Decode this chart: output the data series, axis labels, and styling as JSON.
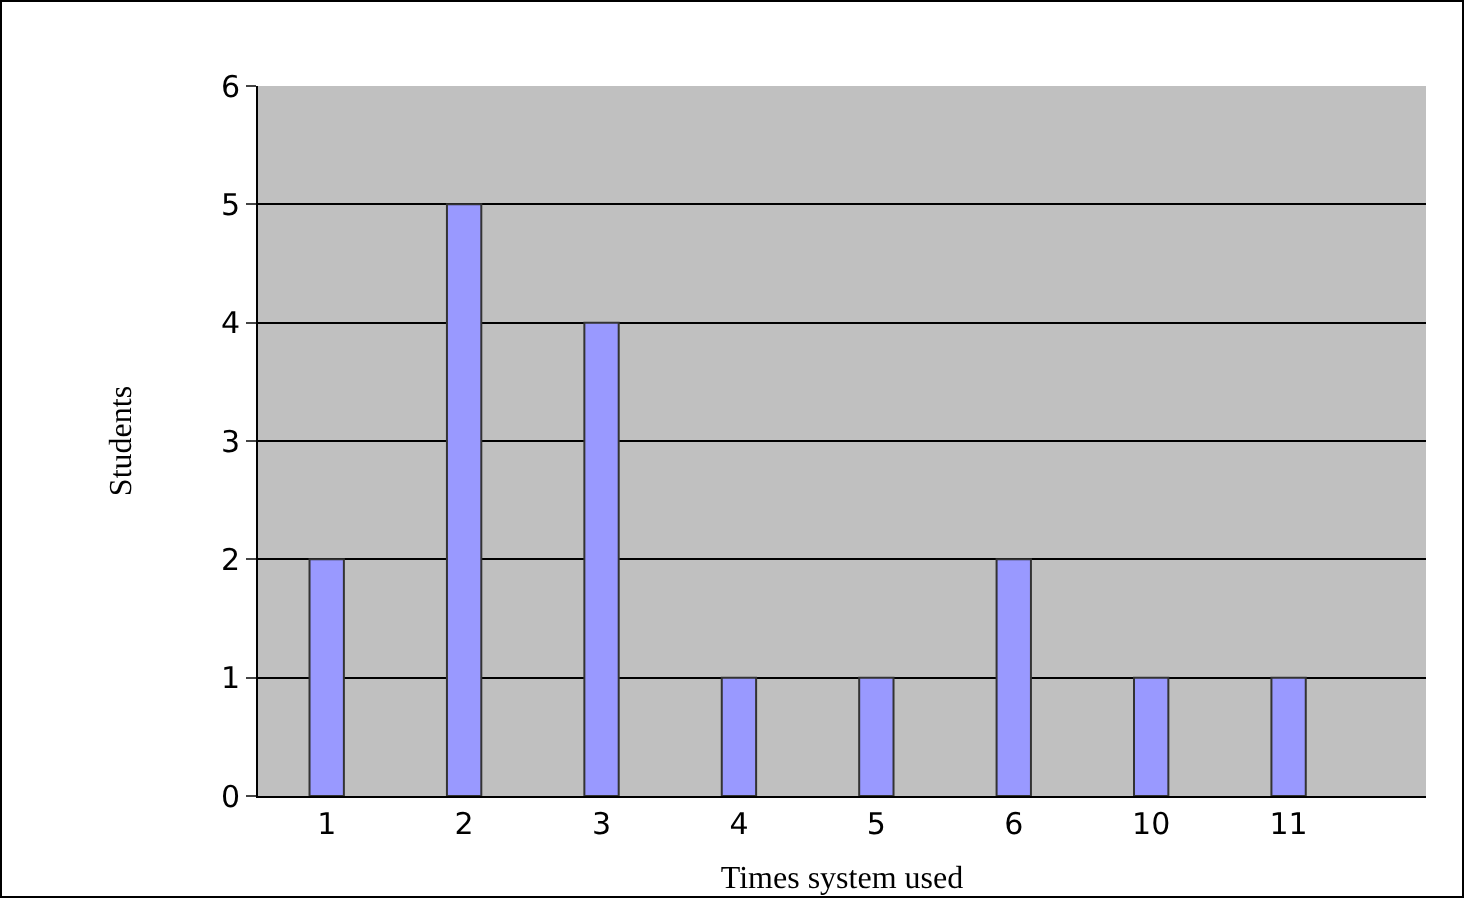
{
  "chart_data": {
    "type": "bar",
    "xlabel": "Times system used",
    "ylabel": "Students",
    "categories": [
      "1",
      "2",
      "3",
      "4",
      "5",
      "6",
      "10",
      "11"
    ],
    "values": [
      2,
      5,
      4,
      1,
      1,
      2,
      1,
      1
    ],
    "color": "#9999ff",
    "ylim": [
      0,
      6
    ],
    "yticks": [
      0,
      1,
      2,
      3,
      4,
      5,
      6
    ],
    "grid": "y"
  }
}
